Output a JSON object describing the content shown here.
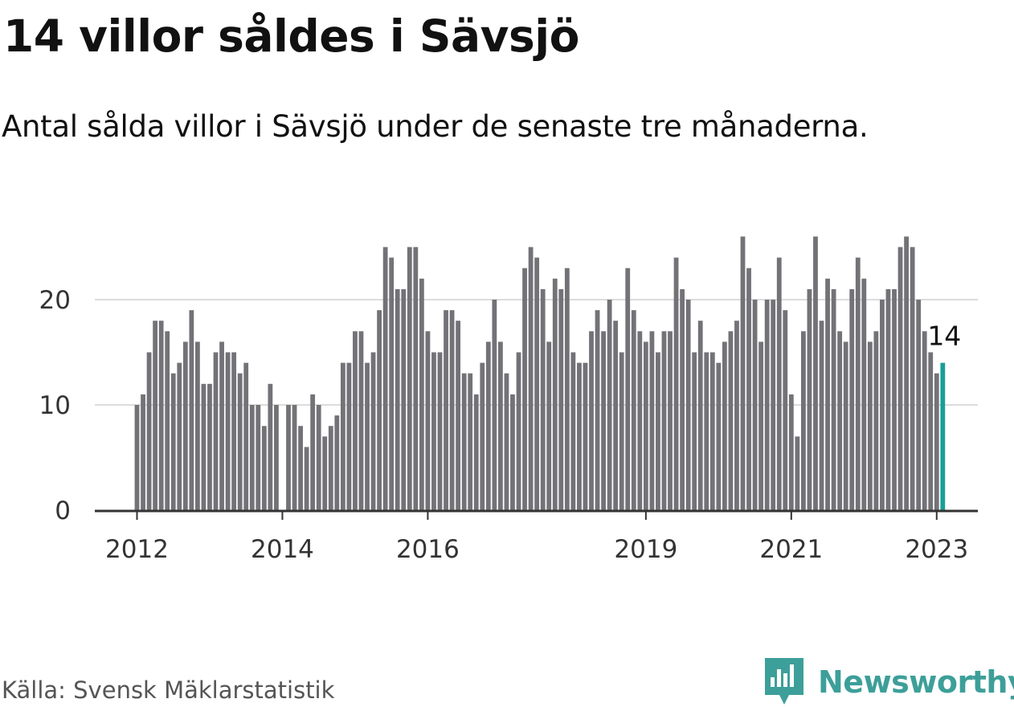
{
  "title": "14 villor såldes i Sävsjö",
  "subtitle": "Antal sålda villor i Sävsjö under de senaste tre månaderna.",
  "source": "Källa: Svensk Mäklarstatistik",
  "brand": {
    "name": "Newsworthy",
    "icon": "newsworthy-logo-icon",
    "color": "#3d9f99"
  },
  "chart_data": {
    "type": "bar",
    "x_start": "2012-01",
    "frequency": "monthly",
    "values": [
      10,
      11,
      15,
      18,
      18,
      17,
      13,
      14,
      16,
      19,
      16,
      12,
      12,
      15,
      16,
      15,
      15,
      13,
      14,
      10,
      10,
      8,
      12,
      10,
      0,
      10,
      10,
      8,
      6,
      11,
      10,
      7,
      8,
      9,
      14,
      14,
      17,
      17,
      14,
      15,
      19,
      25,
      24,
      21,
      21,
      25,
      25,
      22,
      17,
      15,
      15,
      19,
      19,
      18,
      13,
      13,
      11,
      14,
      16,
      20,
      16,
      13,
      11,
      15,
      23,
      25,
      24,
      21,
      16,
      22,
      21,
      23,
      15,
      14,
      14,
      17,
      19,
      17,
      20,
      18,
      15,
      23,
      19,
      17,
      16,
      17,
      15,
      17,
      17,
      24,
      21,
      20,
      15,
      18,
      15,
      15,
      14,
      16,
      17,
      18,
      26,
      23,
      20,
      16,
      20,
      20,
      24,
      19,
      11,
      7,
      17,
      21,
      26,
      18,
      22,
      21,
      17,
      16,
      21,
      24,
      22,
      16,
      17,
      20,
      21,
      21,
      25,
      26,
      25,
      20,
      17,
      15,
      13,
      14
    ],
    "highlight": {
      "index": 133,
      "value": 14,
      "label": "14",
      "color": "#1a9e96"
    },
    "bar_color": "#737277",
    "x_ticks": [
      "2012",
      "2014",
      "2016",
      "2019",
      "2021",
      "2023"
    ],
    "y_ticks": [
      "0",
      "10",
      "20"
    ],
    "ylim": [
      0,
      27
    ],
    "grid": true,
    "xlabel": "",
    "ylabel": ""
  }
}
